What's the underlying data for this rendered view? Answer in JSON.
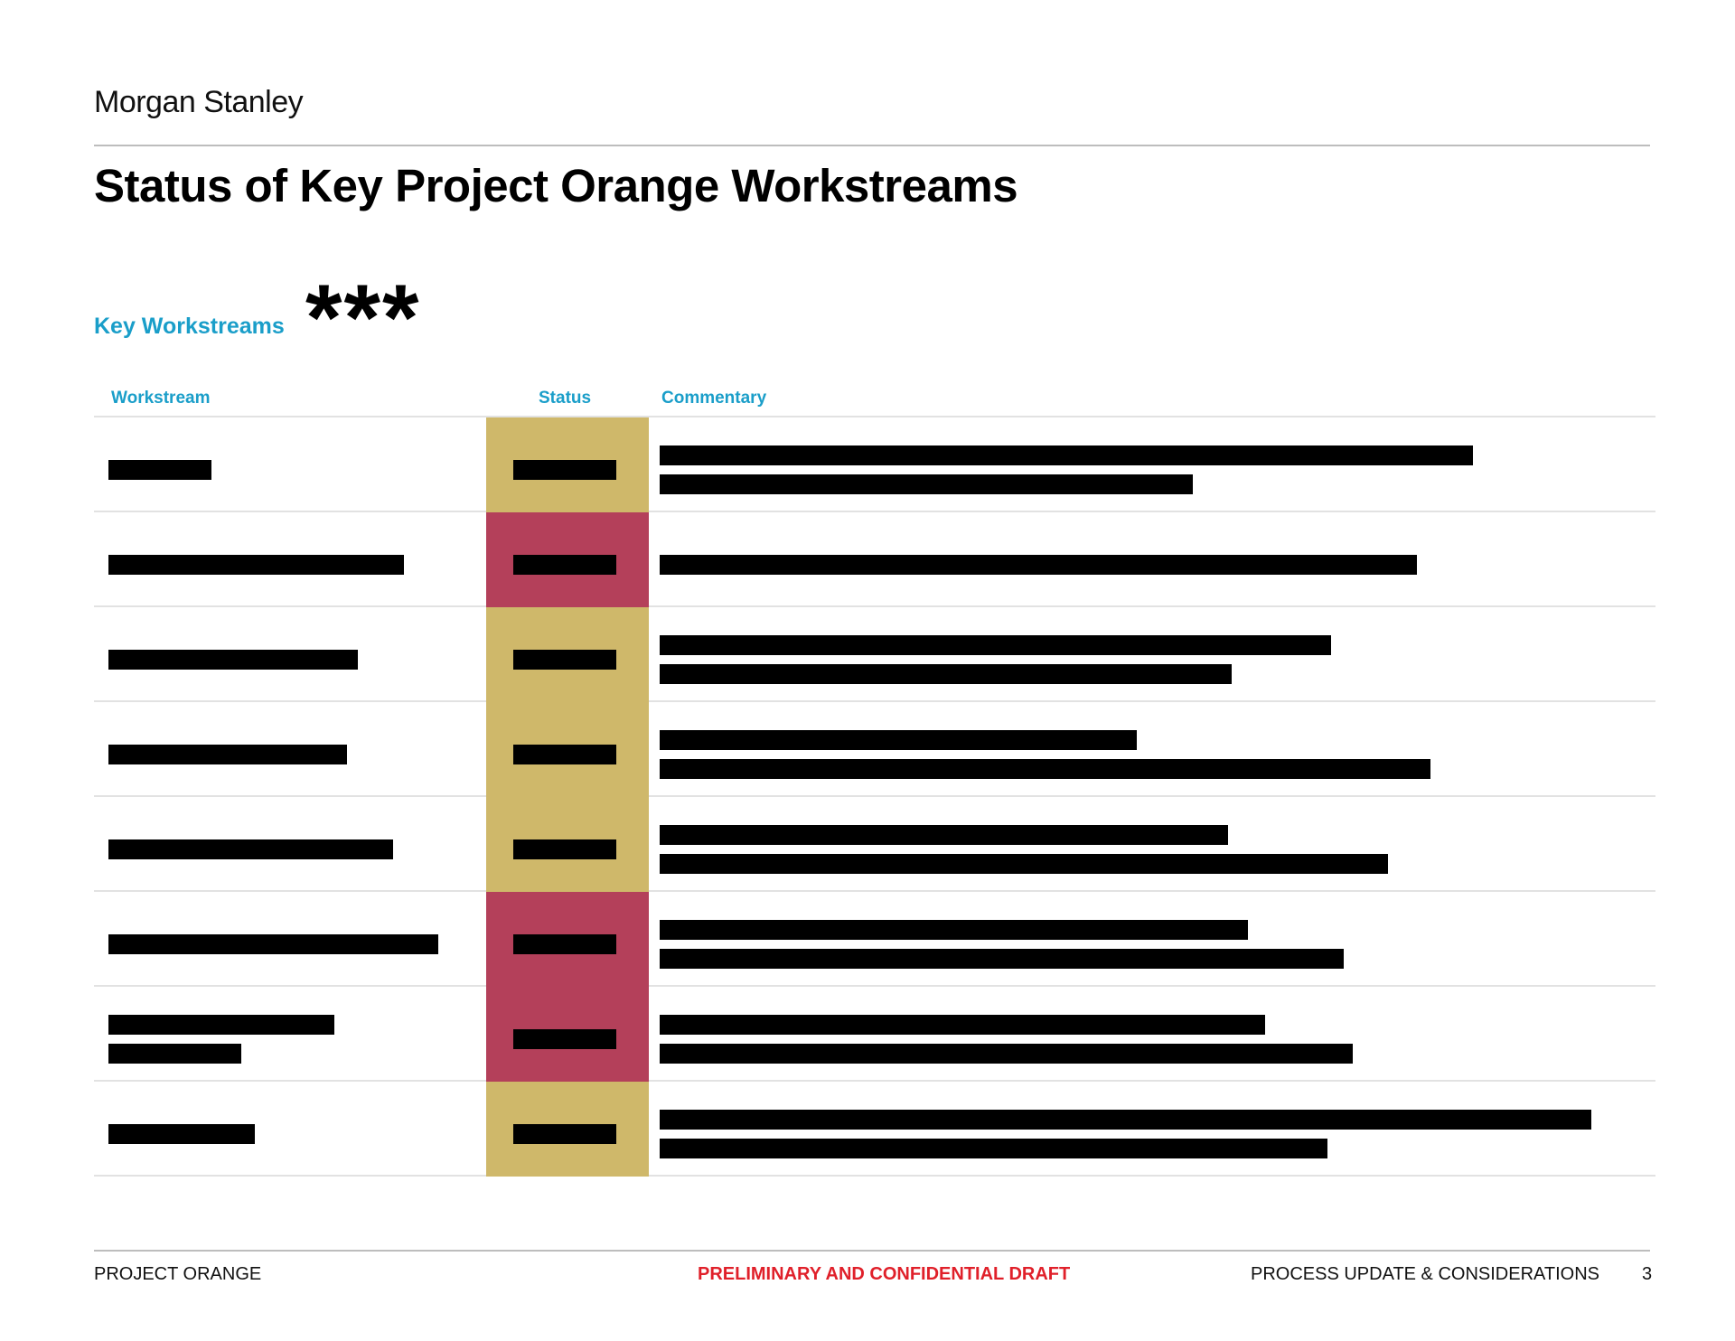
{
  "header": {
    "brand": "Morgan Stanley",
    "title": "Status of Key Project Orange Workstreams"
  },
  "section": {
    "label": "Key Workstreams",
    "redaction_mark": "***"
  },
  "table": {
    "columns": {
      "workstream": "Workstream",
      "status": "Status",
      "commentary": "Commentary"
    },
    "rows": [
      {
        "status": "amber"
      },
      {
        "status": "red"
      },
      {
        "status": "amber"
      },
      {
        "status": "amber"
      },
      {
        "status": "amber"
      },
      {
        "status": "red"
      },
      {
        "status": "red"
      },
      {
        "status": "amber"
      }
    ]
  },
  "colors": {
    "amber": "#cfb86a",
    "red": "#b4405a",
    "accent": "#1a9ec9",
    "confidential": "#e0202a"
  },
  "footer": {
    "project": "PROJECT ORANGE",
    "confidentiality": "PRELIMINARY AND CONFIDENTIAL DRAFT",
    "section": "PROCESS UPDATE & CONSIDERATIONS",
    "page": "3"
  }
}
